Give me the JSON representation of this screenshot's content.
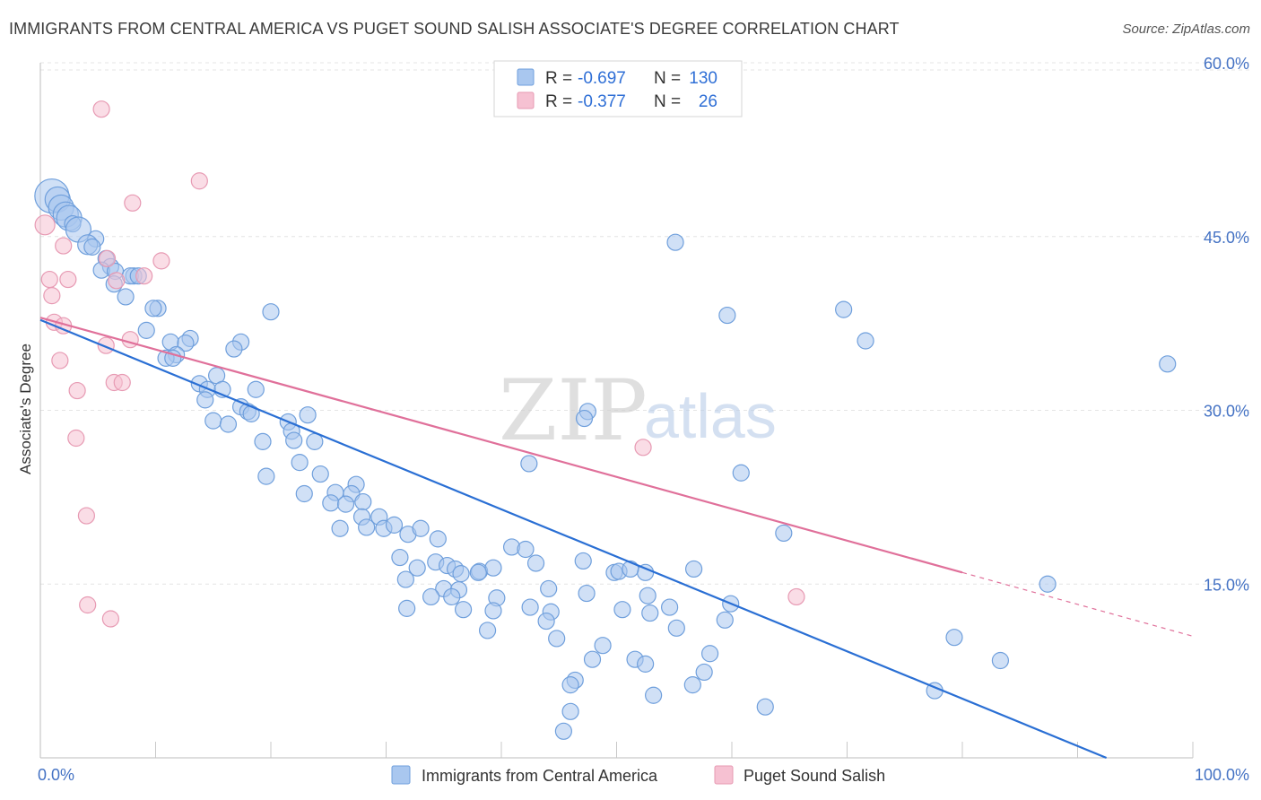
{
  "header": {
    "title": "IMMIGRANTS FROM CENTRAL AMERICA VS PUGET SOUND SALISH ASSOCIATE'S DEGREE CORRELATION CHART",
    "source": "Source: ZipAtlas.com"
  },
  "watermark": {
    "zip": "ZIP",
    "atlas": "atlas"
  },
  "legend_top": {
    "rows": [
      {
        "r_label": "R =",
        "r_value": "-0.697",
        "n_label": "N =",
        "n_value": "130",
        "color": "#6fa0e0"
      },
      {
        "r_label": "R =",
        "r_value": "-0.377",
        "n_label": "N =",
        "n_value": "26",
        "color": "#e88aa8"
      }
    ]
  },
  "legend_bottom": {
    "items": [
      {
        "label": "Immigrants from Central America",
        "color": "#6fa0e0"
      },
      {
        "label": "Puget Sound Salish",
        "color": "#e88aa8"
      }
    ]
  },
  "colors": {
    "blue_fill": "#a9c7ef",
    "blue_stroke": "#6f9fdc",
    "blue_line": "#2a6fd4",
    "pink_fill": "#f6c1d2",
    "pink_stroke": "#e79ab3",
    "pink_line": "#e0709a",
    "grid": "#e4e4e4",
    "tick_text": "#4472c4"
  },
  "chart_data": {
    "type": "scatter",
    "title": "IMMIGRANTS FROM CENTRAL AMERICA VS PUGET SOUND SALISH ASSOCIATE'S DEGREE CORRELATION CHART",
    "xlabel": "",
    "ylabel": "Associate's Degree",
    "xlim": [
      0,
      100
    ],
    "ylim": [
      0,
      60
    ],
    "x_tick_labels": [
      {
        "value": 0,
        "label": "0.0%"
      },
      {
        "value": 100,
        "label": "100.0%"
      }
    ],
    "y_tick_labels": [
      {
        "value": 15,
        "label": "15.0%"
      },
      {
        "value": 30,
        "label": "30.0%"
      },
      {
        "value": 45,
        "label": "45.0%"
      },
      {
        "value": 60,
        "label": "60.0%"
      }
    ],
    "grid": true,
    "legend_position": "top-center",
    "series": [
      {
        "name": "Immigrants from Central America",
        "color": "#6fa0e0",
        "trend": {
          "x": [
            0,
            92.5
          ],
          "y": [
            37.8,
            0
          ]
        },
        "points": [
          [
            1.0,
            48.5,
            3
          ],
          [
            1.5,
            48.2,
            2
          ],
          [
            1.8,
            47.5,
            2
          ],
          [
            2.2,
            46.9,
            2
          ],
          [
            2.5,
            46.6,
            2
          ],
          [
            2.8,
            46.1,
            1
          ],
          [
            3.3,
            45.6,
            2
          ],
          [
            4.8,
            44.8,
            1
          ],
          [
            4.1,
            44.3,
            1.5
          ],
          [
            4.5,
            44.1,
            1
          ],
          [
            5.7,
            43.1,
            1
          ],
          [
            6.1,
            42.4,
            1
          ],
          [
            5.3,
            42.1,
            1
          ],
          [
            6.5,
            42.0,
            1
          ],
          [
            8.1,
            41.6,
            1
          ],
          [
            7.8,
            41.6,
            1
          ],
          [
            8.5,
            41.6,
            1
          ],
          [
            6.4,
            40.9,
            1
          ],
          [
            7.4,
            39.8,
            1
          ],
          [
            10.2,
            38.8,
            1
          ],
          [
            9.8,
            38.8,
            1
          ],
          [
            20.0,
            38.5,
            1
          ],
          [
            9.2,
            36.9,
            1
          ],
          [
            11.3,
            35.9,
            1
          ],
          [
            13.0,
            36.2,
            1
          ],
          [
            12.6,
            35.8,
            1
          ],
          [
            17.4,
            35.9,
            1
          ],
          [
            11.8,
            34.8,
            1
          ],
          [
            10.9,
            34.5,
            1
          ],
          [
            11.5,
            34.5,
            1
          ],
          [
            16.8,
            35.3,
            1
          ],
          [
            15.3,
            33.0,
            1
          ],
          [
            13.8,
            32.3,
            1
          ],
          [
            14.5,
            31.8,
            1
          ],
          [
            15.8,
            31.8,
            1
          ],
          [
            18.7,
            31.8,
            1
          ],
          [
            14.3,
            30.9,
            1
          ],
          [
            17.4,
            30.3,
            1
          ],
          [
            18.0,
            29.9,
            1
          ],
          [
            18.3,
            29.7,
            1
          ],
          [
            15.0,
            29.1,
            1
          ],
          [
            16.3,
            28.8,
            1
          ],
          [
            21.5,
            29.0,
            1
          ],
          [
            23.2,
            29.6,
            1
          ],
          [
            21.8,
            28.2,
            1
          ],
          [
            22.0,
            27.4,
            1
          ],
          [
            19.3,
            27.3,
            1
          ],
          [
            23.8,
            27.3,
            1
          ],
          [
            22.5,
            25.5,
            1
          ],
          [
            19.6,
            24.3,
            1
          ],
          [
            22.9,
            22.8,
            1
          ],
          [
            24.3,
            24.5,
            1
          ],
          [
            25.6,
            22.9,
            1
          ],
          [
            27.4,
            23.6,
            1
          ],
          [
            27.0,
            22.8,
            1
          ],
          [
            28.0,
            22.1,
            1
          ],
          [
            25.2,
            22.0,
            1
          ],
          [
            26.5,
            21.9,
            1
          ],
          [
            27.9,
            20.8,
            1
          ],
          [
            29.4,
            20.8,
            1
          ],
          [
            26.0,
            19.8,
            1
          ],
          [
            28.3,
            19.9,
            1
          ],
          [
            29.8,
            19.8,
            1
          ],
          [
            30.7,
            20.1,
            1
          ],
          [
            31.9,
            19.3,
            1
          ],
          [
            33.0,
            19.8,
            1
          ],
          [
            34.5,
            18.9,
            1
          ],
          [
            31.2,
            17.3,
            1
          ],
          [
            32.7,
            16.4,
            1
          ],
          [
            34.3,
            16.9,
            1
          ],
          [
            35.3,
            16.6,
            1
          ],
          [
            36.0,
            16.3,
            1
          ],
          [
            38.1,
            16.1,
            1
          ],
          [
            39.3,
            16.4,
            1
          ],
          [
            36.5,
            15.9,
            1
          ],
          [
            38.0,
            16.0,
            1
          ],
          [
            31.7,
            15.4,
            1
          ],
          [
            35.0,
            14.6,
            1
          ],
          [
            36.3,
            14.5,
            1
          ],
          [
            33.9,
            13.9,
            1
          ],
          [
            35.7,
            13.9,
            1
          ],
          [
            39.6,
            13.8,
            1
          ],
          [
            31.8,
            12.9,
            1
          ],
          [
            36.7,
            12.8,
            1
          ],
          [
            39.3,
            12.7,
            1
          ],
          [
            40.9,
            18.2,
            1
          ],
          [
            42.1,
            18.0,
            1
          ],
          [
            43.0,
            16.8,
            1
          ],
          [
            47.1,
            17.0,
            1
          ],
          [
            44.1,
            14.6,
            1
          ],
          [
            42.5,
            13.0,
            1
          ],
          [
            44.3,
            12.6,
            1
          ],
          [
            47.4,
            14.2,
            1
          ],
          [
            43.9,
            11.8,
            1
          ],
          [
            38.8,
            11.0,
            1
          ],
          [
            44.8,
            10.3,
            1
          ],
          [
            46.4,
            6.7,
            1
          ],
          [
            47.9,
            8.5,
            1
          ],
          [
            51.6,
            8.5,
            1
          ],
          [
            52.5,
            8.1,
            1
          ],
          [
            53.2,
            5.4,
            1
          ],
          [
            52.7,
            14.0,
            1
          ],
          [
            54.6,
            13.0,
            1
          ],
          [
            52.9,
            12.5,
            1
          ],
          [
            52.5,
            16.0,
            1
          ],
          [
            55.2,
            11.2,
            1
          ],
          [
            58.1,
            9.0,
            1
          ],
          [
            56.6,
            6.3,
            1
          ],
          [
            57.6,
            7.4,
            1
          ],
          [
            48.8,
            9.7,
            1
          ],
          [
            46.0,
            6.3,
            1
          ],
          [
            50.5,
            12.8,
            1
          ],
          [
            49.8,
            16.0,
            1
          ],
          [
            50.2,
            16.1,
            1
          ],
          [
            51.2,
            16.3,
            1
          ],
          [
            56.7,
            16.3,
            1
          ],
          [
            59.9,
            13.3,
            1
          ],
          [
            59.4,
            11.9,
            1
          ],
          [
            60.8,
            24.6,
            1
          ],
          [
            59.6,
            38.2,
            1
          ],
          [
            46.0,
            4.0,
            1
          ],
          [
            45.4,
            2.3,
            1
          ],
          [
            62.9,
            4.4,
            1
          ],
          [
            64.5,
            19.4,
            1
          ],
          [
            69.7,
            38.7,
            1
          ],
          [
            71.6,
            36.0,
            1
          ],
          [
            79.3,
            10.4,
            1
          ],
          [
            77.6,
            5.8,
            1
          ],
          [
            83.3,
            8.4,
            1
          ],
          [
            87.4,
            15.0,
            1
          ],
          [
            97.8,
            34.0,
            1
          ],
          [
            55.1,
            44.5,
            1
          ],
          [
            47.5,
            29.9,
            1
          ],
          [
            47.2,
            29.3,
            1
          ],
          [
            42.4,
            25.4,
            1
          ]
        ]
      },
      {
        "name": "Puget Sound Salish",
        "color": "#e88aa8",
        "trend": {
          "x": [
            0,
            80.0
          ],
          "y": [
            38.0,
            16.0
          ]
        },
        "trend_dashed": {
          "x": [
            80.0,
            100
          ],
          "y": [
            16.0,
            10.5
          ]
        },
        "points": [
          [
            0.4,
            46.0,
            1.5
          ],
          [
            5.3,
            56.0,
            1
          ],
          [
            13.8,
            49.8,
            1
          ],
          [
            8.0,
            47.9,
            1
          ],
          [
            2.0,
            44.2,
            1
          ],
          [
            5.8,
            43.1,
            1
          ],
          [
            10.5,
            42.9,
            1
          ],
          [
            6.6,
            41.2,
            1
          ],
          [
            9.0,
            41.6,
            1
          ],
          [
            0.8,
            41.3,
            1
          ],
          [
            2.4,
            41.3,
            1
          ],
          [
            1.0,
            39.9,
            1
          ],
          [
            1.2,
            37.6,
            1
          ],
          [
            2.0,
            37.3,
            1
          ],
          [
            7.8,
            36.1,
            1
          ],
          [
            5.7,
            35.6,
            1
          ],
          [
            1.7,
            34.3,
            1
          ],
          [
            6.4,
            32.4,
            1
          ],
          [
            7.1,
            32.4,
            1
          ],
          [
            3.2,
            31.7,
            1
          ],
          [
            3.1,
            27.6,
            1
          ],
          [
            4.0,
            20.9,
            1
          ],
          [
            4.1,
            13.2,
            1
          ],
          [
            6.1,
            12.0,
            1
          ],
          [
            52.3,
            26.8,
            1
          ],
          [
            65.6,
            13.9,
            1
          ]
        ]
      }
    ]
  }
}
